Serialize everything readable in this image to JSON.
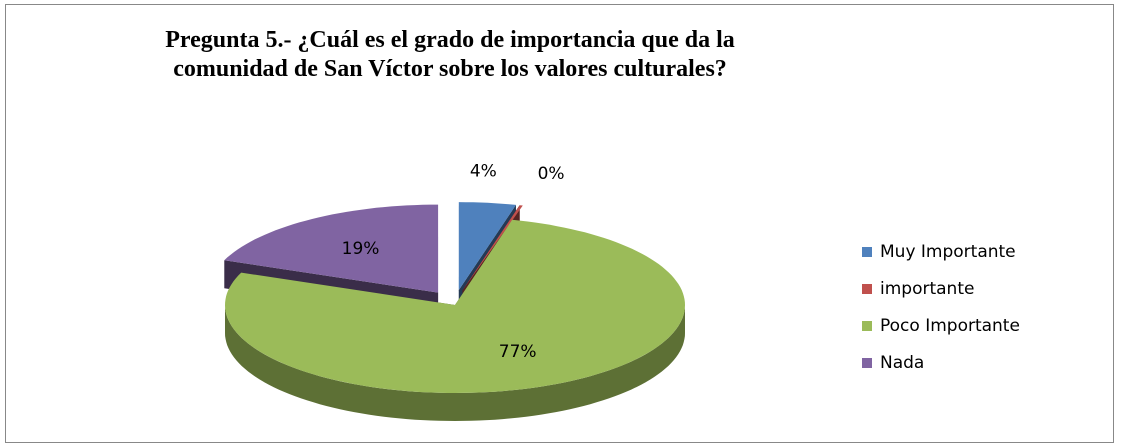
{
  "chart_data": {
    "type": "pie3d",
    "title": "Pregunta 5.- ¿Cuál es el grado de importancia que da la comunidad de San Víctor sobre los valores culturales?",
    "categories": [
      "Muy Importante",
      "importante",
      "Poco Importante",
      "Nada"
    ],
    "values": [
      4,
      0,
      77,
      19
    ],
    "value_labels": [
      "4%",
      "0%",
      "77%",
      "19%"
    ],
    "colors": [
      "#4f81bd",
      "#c0504d",
      "#9bbb59",
      "#8064a2"
    ],
    "legend": "right"
  }
}
